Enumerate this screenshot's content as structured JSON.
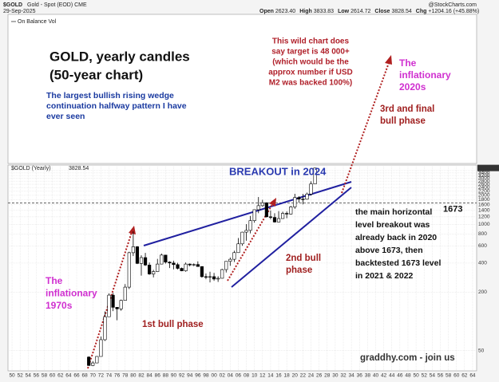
{
  "header": {
    "symbol": "$GOLD",
    "name": "Gold - Spot (EOD) CME",
    "date": "29-Sep-2025",
    "source": "@StockCharts.com",
    "stats": [
      {
        "label": "Open",
        "value": "2623.40"
      },
      {
        "label": "High",
        "value": "3833.83"
      },
      {
        "label": "Low",
        "value": "2614.72"
      },
      {
        "label": "Close",
        "value": "3828.54"
      },
      {
        "label": "Chg",
        "value": "+1204.16 (+45.88%)"
      }
    ],
    "indicator": "On Balance Vol",
    "price_label": "$GOLD (Yearly)"
  },
  "chart_data": {
    "type": "candlestick",
    "log_scale": true,
    "grid": true,
    "x": [
      1969,
      1970,
      1971,
      1972,
      1973,
      1974,
      1975,
      1976,
      1977,
      1978,
      1979,
      1980,
      1981,
      1982,
      1983,
      1984,
      1985,
      1986,
      1987,
      1988,
      1989,
      1990,
      1991,
      1992,
      1993,
      1994,
      1995,
      1996,
      1997,
      1998,
      1999,
      2000,
      2001,
      2002,
      2003,
      2004,
      2005,
      2006,
      2007,
      2008,
      2009,
      2010,
      2011,
      2012,
      2013,
      2014,
      2015,
      2016,
      2017,
      2018,
      2019,
      2020,
      2021,
      2022,
      2023,
      2024,
      2025
    ],
    "open": [
      43,
      35.2,
      37.4,
      43.6,
      64.9,
      112,
      187,
      140,
      135,
      165,
      226,
      512,
      590,
      397,
      456,
      382,
      309,
      327,
      391,
      484,
      410,
      401,
      386,
      353,
      333,
      391,
      383,
      387,
      369,
      290,
      288,
      290,
      274,
      279,
      343,
      417,
      438,
      513,
      632,
      834,
      870,
      1097,
      1421,
      1564,
      1676,
      1202,
      1184,
      1061,
      1152,
      1303,
      1282,
      1517,
      1898,
      1829,
      1824,
      2063,
      2623.4
    ],
    "high": [
      43.8,
      39,
      44,
      70,
      127,
      195,
      197,
      140,
      168,
      243,
      524,
      850,
      599,
      481,
      510,
      406,
      341,
      442,
      502,
      485,
      418,
      424,
      403,
      360,
      406,
      397,
      397,
      417,
      370,
      313,
      326,
      317,
      293,
      350,
      417,
      457,
      537,
      725,
      841,
      1011,
      1226,
      1431,
      1921,
      1796,
      1694,
      1392,
      1307,
      1375,
      1358,
      1366,
      1557,
      2075,
      1959,
      2070,
      2135,
      2790,
      3833.83
    ],
    "low": [
      34.8,
      34.8,
      37.3,
      43.8,
      63,
      116,
      128,
      103,
      129,
      165,
      216,
      474,
      391,
      297,
      374,
      303,
      285,
      326,
      390,
      395,
      356,
      345,
      344,
      330,
      326,
      370,
      372,
      367,
      283,
      273,
      253,
      263,
      256,
      278,
      320,
      375,
      411,
      525,
      603,
      681,
      810,
      1044,
      1308,
      1527,
      1180,
      1131,
      1046,
      1061,
      1151,
      1160,
      1266,
      1451,
      1677,
      1615,
      1805,
      1985,
      2614.72
    ],
    "close": [
      35.2,
      37.4,
      43.6,
      64.9,
      112,
      187,
      140,
      135,
      165,
      226,
      512,
      590,
      397,
      456,
      382,
      309,
      327,
      391,
      484,
      410,
      401,
      386,
      353,
      333,
      391,
      383,
      387,
      369,
      290,
      288,
      290,
      274,
      279,
      343,
      417,
      438,
      513,
      632,
      834,
      870,
      1097,
      1421,
      1564,
      1676,
      1202,
      1184,
      1061,
      1152,
      1303,
      1282,
      1517,
      1898,
      1829,
      1824,
      2063,
      2624,
      3828.54
    ],
    "xlim": [
      1949,
      2065
    ],
    "ylim": [
      31,
      4100
    ],
    "yticks": [
      50,
      200,
      400,
      600,
      800,
      1000,
      1200,
      1400,
      1600,
      1800,
      2000,
      2200,
      2400,
      2600,
      2800,
      3000,
      3200,
      3400,
      3600
    ],
    "xticks": [
      {
        "value": 1950,
        "label": "50"
      },
      {
        "value": 1952,
        "label": "52"
      },
      {
        "value": 1954,
        "label": "54"
      },
      {
        "value": 1956,
        "label": "56"
      },
      {
        "value": 1958,
        "label": "58"
      },
      {
        "value": 1960,
        "label": "60"
      },
      {
        "value": 1962,
        "label": "62"
      },
      {
        "value": 1964,
        "label": "64"
      },
      {
        "value": 1966,
        "label": "66"
      },
      {
        "value": 1968,
        "label": "68"
      },
      {
        "value": 1970,
        "label": "70"
      },
      {
        "value": 1972,
        "label": "72"
      },
      {
        "value": 1974,
        "label": "74"
      },
      {
        "value": 1976,
        "label": "76"
      },
      {
        "value": 1978,
        "label": "78"
      },
      {
        "value": 1980,
        "label": "80"
      },
      {
        "value": 1982,
        "label": "82"
      },
      {
        "value": 1984,
        "label": "84"
      },
      {
        "value": 1986,
        "label": "86"
      },
      {
        "value": 1988,
        "label": "88"
      },
      {
        "value": 1990,
        "label": "90"
      },
      {
        "value": 1992,
        "label": "92"
      },
      {
        "value": 1994,
        "label": "94"
      },
      {
        "value": 1996,
        "label": "96"
      },
      {
        "value": 1998,
        "label": "98"
      },
      {
        "value": 2000,
        "label": "00"
      },
      {
        "value": 2002,
        "label": "02"
      },
      {
        "value": 2004,
        "label": "04"
      },
      {
        "value": 2006,
        "label": "06"
      },
      {
        "value": 2008,
        "label": "08"
      },
      {
        "value": 2010,
        "label": "10"
      },
      {
        "value": 2012,
        "label": "12"
      },
      {
        "value": 2014,
        "label": "14"
      },
      {
        "value": 2016,
        "label": "16"
      },
      {
        "value": 2018,
        "label": "18"
      },
      {
        "value": 2020,
        "label": "20"
      },
      {
        "value": 2022,
        "label": "22"
      },
      {
        "value": 2024,
        "label": "24"
      },
      {
        "value": 2026,
        "label": "26"
      },
      {
        "value": 2028,
        "label": "28"
      },
      {
        "value": 2030,
        "label": "30"
      },
      {
        "value": 2032,
        "label": "32"
      },
      {
        "value": 2034,
        "label": "34"
      },
      {
        "value": 2036,
        "label": "36"
      },
      {
        "value": 2038,
        "label": "38"
      },
      {
        "value": 2040,
        "label": "40"
      },
      {
        "value": 2042,
        "label": "42"
      },
      {
        "value": 2044,
        "label": "44"
      },
      {
        "value": 2046,
        "label": "46"
      },
      {
        "value": 2048,
        "label": "48"
      },
      {
        "value": 2050,
        "label": "50"
      },
      {
        "value": 2052,
        "label": "52"
      },
      {
        "value": 2054,
        "label": "54"
      },
      {
        "value": 2056,
        "label": "56"
      },
      {
        "value": 2058,
        "label": "58"
      },
      {
        "value": 2060,
        "label": "60"
      },
      {
        "value": 2062,
        "label": "62"
      },
      {
        "value": 2064,
        "label": "64"
      }
    ],
    "level": 1673,
    "annotations": [
      {
        "lines": [
          "GOLD, yearly candles",
          "(50-year chart)"
        ]
      },
      {
        "lines": [
          "The largest bullish rising wedge",
          "continuation halfway pattern I have",
          "ever seen"
        ]
      },
      {
        "lines": [
          "This wild chart does",
          "say target is 48 000+",
          "(which would be the",
          "approx number if USD",
          "M2 was backed 100%)"
        ]
      },
      {
        "lines": [
          "The",
          "inflationary",
          "2020s"
        ]
      },
      {
        "lines": [
          "3rd and final",
          "bull phase"
        ]
      },
      {
        "lines": [
          "BREAKOUT in 2024"
        ]
      },
      {
        "lines": [
          "the main horizontal",
          "level breakout was",
          "already back in 2020",
          "above 1673, then",
          "backtested 1673 level",
          "in 2021 & 2022"
        ]
      },
      {
        "lines": [
          "2nd bull",
          "phase"
        ]
      },
      {
        "lines": [
          "The",
          "inflationary",
          "1970s"
        ]
      },
      {
        "lines": [
          "1st bull phase"
        ]
      },
      {
        "lines": [
          "graddhy.com - join us"
        ]
      }
    ]
  }
}
